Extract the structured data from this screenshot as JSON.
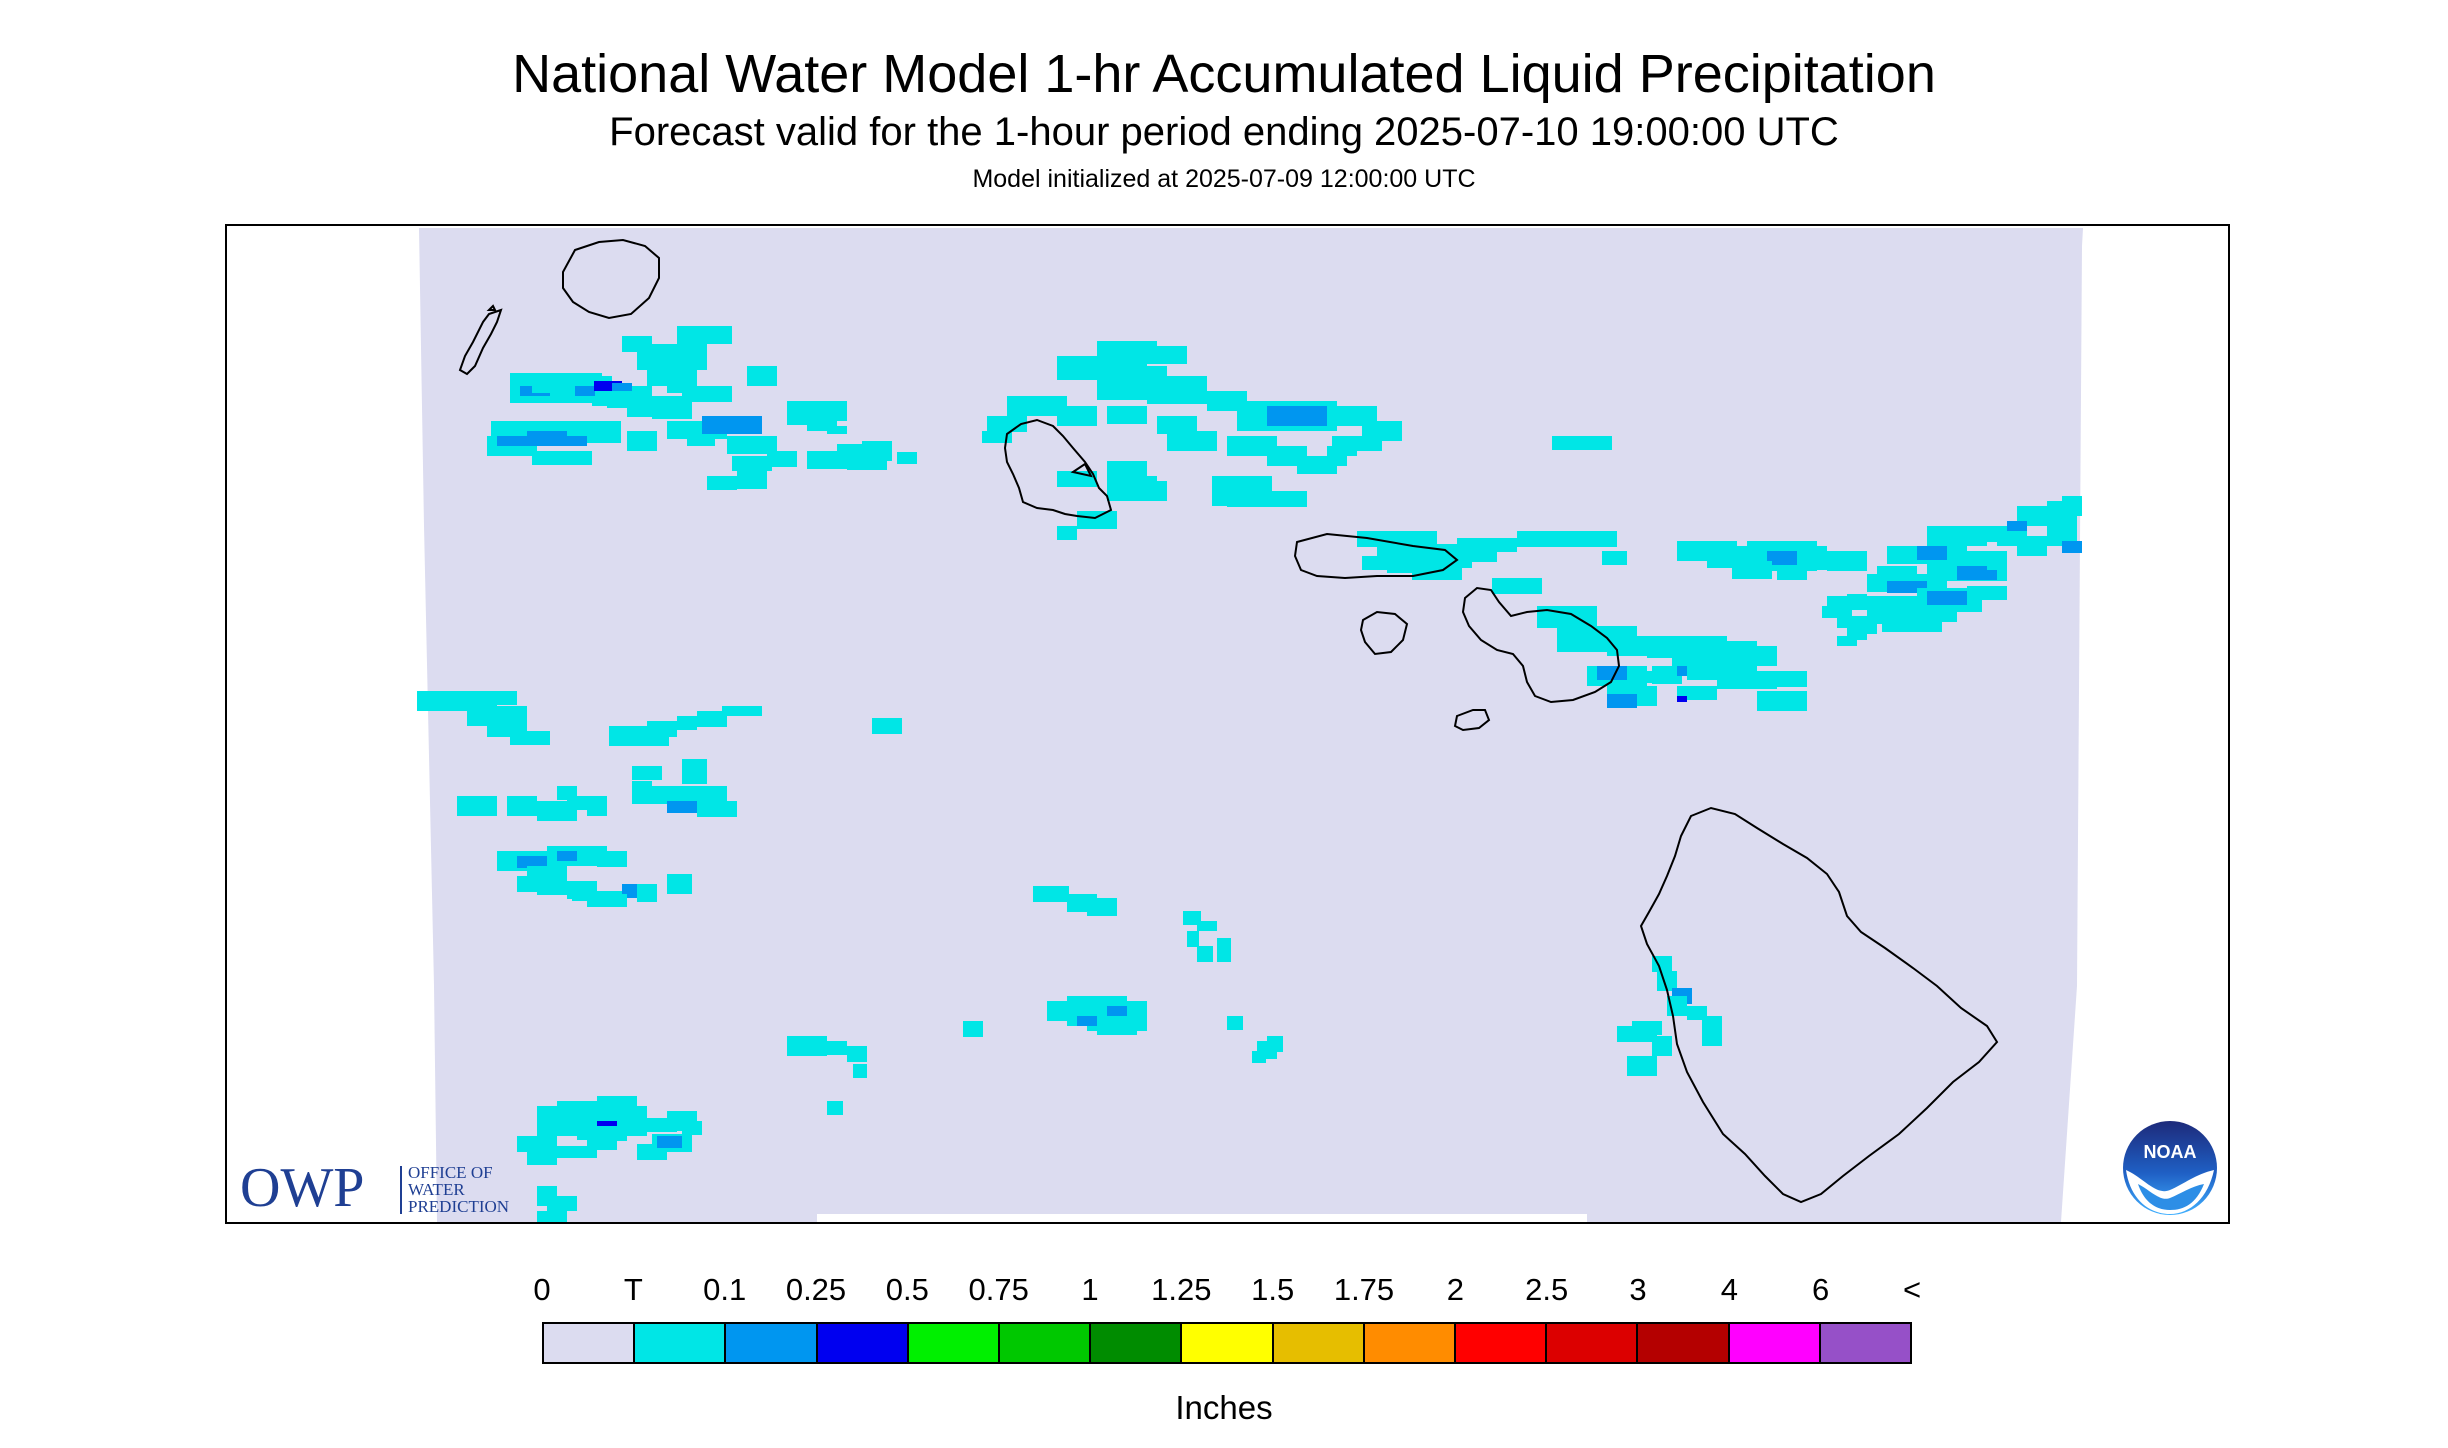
{
  "header": {
    "title": "National Water Model 1-hr Accumulated Liquid Precipitation",
    "subtitle": "Forecast valid for the 1-hour period ending 2025-07-10 19:00:00 UTC",
    "init": "Model initialized at 2025-07-09 12:00:00 UTC"
  },
  "logos": {
    "owp": {
      "mark": "OWP",
      "line1": "OFFICE OF",
      "line2": "WATER",
      "line3": "PREDICTION",
      "icon": "owp-logo"
    },
    "noaa": {
      "mark": "NOAA",
      "icon": "noaa-logo"
    }
  },
  "legend": {
    "labels": [
      "0",
      "T",
      "0.1",
      "0.25",
      "0.5",
      "0.75",
      "1",
      "1.25",
      "1.5",
      "1.75",
      "2",
      "2.5",
      "3",
      "4",
      "6",
      "<"
    ],
    "colors": [
      "#dcdcf0",
      "#00e6e6",
      "#0096f0",
      "#0000f0",
      "#00f000",
      "#00c800",
      "#008c00",
      "#ffff00",
      "#e6be00",
      "#ff8c00",
      "#ff0000",
      "#dc0000",
      "#b40000",
      "#ff00ff",
      "#9650c8"
    ],
    "units": "Inches"
  },
  "colors": {
    "background_domain": "#dcdcf0",
    "trace": "#00e6e6",
    "light": "#0096f0",
    "moderate": "#0000f0",
    "coastline": "#000000",
    "frame": "#000000"
  }
}
